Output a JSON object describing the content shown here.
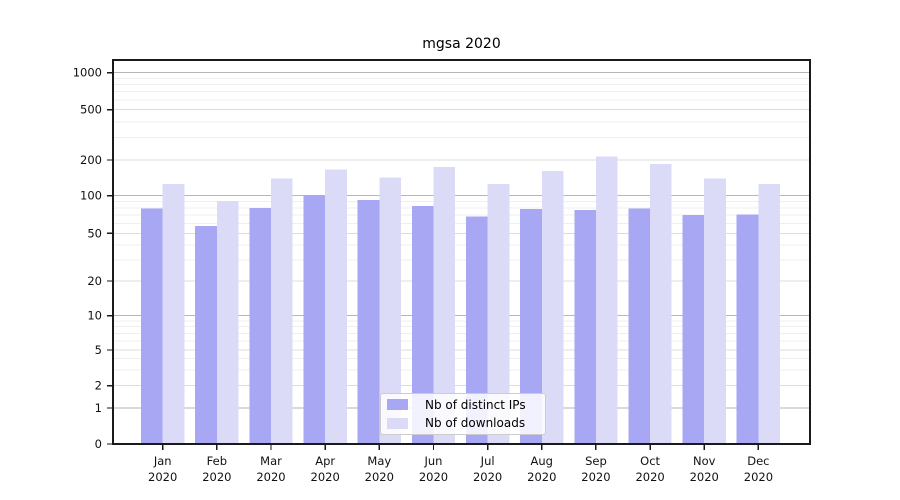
{
  "figure": {
    "title": "mgsa 2020"
  },
  "chart_data": {
    "type": "bar",
    "title": "mgsa 2020",
    "categories_line1": [
      "Jan",
      "Feb",
      "Mar",
      "Apr",
      "May",
      "Jun",
      "Jul",
      "Aug",
      "Sep",
      "Oct",
      "Nov",
      "Dec"
    ],
    "categories_line2": "2020",
    "series": [
      {
        "name": "Nb of distinct IPs",
        "color": "#a7a7f4",
        "values": [
          79,
          57,
          80,
          101,
          92,
          83,
          68,
          78,
          77,
          79,
          70,
          71
        ]
      },
      {
        "name": "Nb of downloads",
        "color": "#dbdbf8",
        "values": [
          125,
          91,
          140,
          166,
          142,
          175,
          125,
          162,
          214,
          185,
          139,
          126
        ]
      }
    ],
    "yscale": "symlog",
    "yticks": [
      0,
      1,
      2,
      5,
      10,
      20,
      50,
      100,
      200,
      500,
      1000
    ],
    "ylim": [
      0,
      1270
    ],
    "grid": true,
    "legend_position": "lower-center"
  }
}
